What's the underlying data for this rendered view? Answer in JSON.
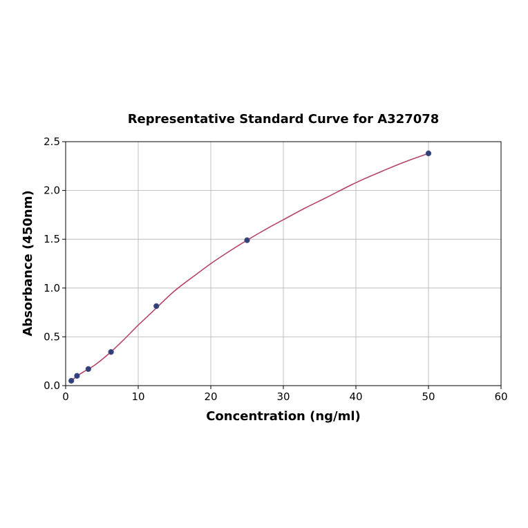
{
  "chart_data": {
    "type": "scatter",
    "title": "Representative Standard Curve for A327078",
    "xlabel": "Concentration (ng/ml)",
    "ylabel": "Absorbance (450nm)",
    "xlim": [
      0,
      60
    ],
    "ylim": [
      0,
      2.5
    ],
    "xticks": [
      0,
      10,
      20,
      30,
      40,
      50,
      60
    ],
    "yticks": [
      0.0,
      0.5,
      1.0,
      1.5,
      2.0,
      2.5
    ],
    "xtick_labels": [
      "0",
      "10",
      "20",
      "30",
      "40",
      "50",
      "60"
    ],
    "ytick_labels": [
      "0.0",
      "0.5",
      "1.0",
      "1.5",
      "2.0",
      "2.5"
    ],
    "grid": true,
    "points": {
      "x": [
        0.78,
        1.56,
        3.125,
        6.25,
        12.5,
        25,
        50
      ],
      "y": [
        0.05,
        0.1,
        0.17,
        0.345,
        0.815,
        1.49,
        2.38
      ]
    },
    "fit_curve": {
      "x": [
        0.78,
        2,
        4,
        6,
        8,
        10,
        12,
        15,
        18,
        20,
        22,
        25,
        28,
        30,
        33,
        36,
        40,
        44,
        47,
        50
      ],
      "y": [
        0.05,
        0.12,
        0.21,
        0.33,
        0.47,
        0.62,
        0.76,
        0.97,
        1.14,
        1.25,
        1.35,
        1.49,
        1.62,
        1.7,
        1.82,
        1.93,
        2.08,
        2.21,
        2.3,
        2.38
      ]
    },
    "colors": {
      "point_fill": "#2f3f7a",
      "point_edge": "#5a5a8a",
      "curve": "#b5426b",
      "grid": "#b0b0b0"
    }
  }
}
